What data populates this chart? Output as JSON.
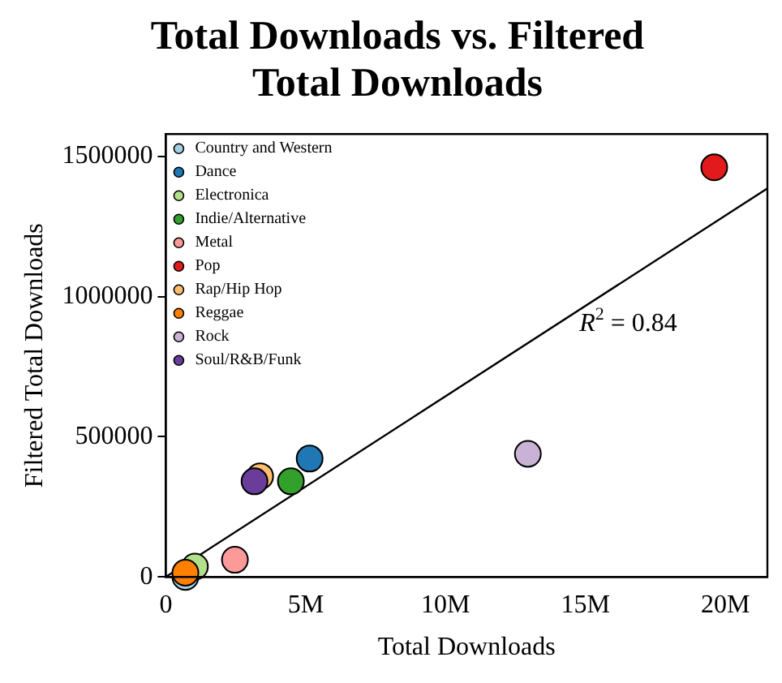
{
  "chart_data": {
    "type": "scatter",
    "title": "Total Downloads vs. Filtered Total Downloads",
    "xlabel": "Total Downloads",
    "ylabel": "Filtered Total Downloads",
    "xlim": [
      0,
      21500000
    ],
    "ylim": [
      0,
      1580000
    ],
    "xticks": [
      {
        "value": 0,
        "label": "0"
      },
      {
        "value": 5000000,
        "label": "5M"
      },
      {
        "value": 10000000,
        "label": "10M"
      },
      {
        "value": 15000000,
        "label": "15M"
      },
      {
        "value": 20000000,
        "label": "20M"
      }
    ],
    "yticks": [
      0,
      500000,
      1000000,
      1500000
    ],
    "grid": false,
    "legend": "top left",
    "marker": "circle",
    "annotations": [
      "R$^{2}$ = 0.84"
    ],
    "series": [
      {
        "name": "Country and Western",
        "color": "#a6cee3",
        "x": [
          700000
        ],
        "values": [
          0
        ]
      },
      {
        "name": "Dance",
        "color": "#1f78b4",
        "x": [
          5140000
        ],
        "values": [
          422000
        ]
      },
      {
        "name": "Electronica",
        "color": "#b2df8a",
        "x": [
          1040000
        ],
        "values": [
          37000
        ]
      },
      {
        "name": "Indie/Alternative",
        "color": "#33a02c",
        "x": [
          4470000
        ],
        "values": [
          341000
        ]
      },
      {
        "name": "Metal",
        "color": "#fb9a99",
        "x": [
          2470000
        ],
        "values": [
          61000
        ]
      },
      {
        "name": "Pop",
        "color": "#e31a1c",
        "x": [
          19600000
        ],
        "values": [
          1461000
        ]
      },
      {
        "name": "Rap/Hip Hop",
        "color": "#fdbf6f",
        "x": [
          3370000
        ],
        "values": [
          359000
        ]
      },
      {
        "name": "Reggae",
        "color": "#ff7f00",
        "x": [
          700000
        ],
        "values": [
          15000
        ]
      },
      {
        "name": "Rock",
        "color": "#cab2d6",
        "x": [
          12940000
        ],
        "values": [
          439000
        ]
      },
      {
        "name": "Soul/R&B/Funk",
        "color": "#6a3d9a",
        "x": [
          3170000
        ],
        "values": [
          341000
        ]
      },
      {
        "type": "line",
        "color": "#000000",
        "marker": "none",
        "x": [
          0,
          21500000
        ],
        "values": [
          0,
          1386000
        ]
      }
    ]
  }
}
